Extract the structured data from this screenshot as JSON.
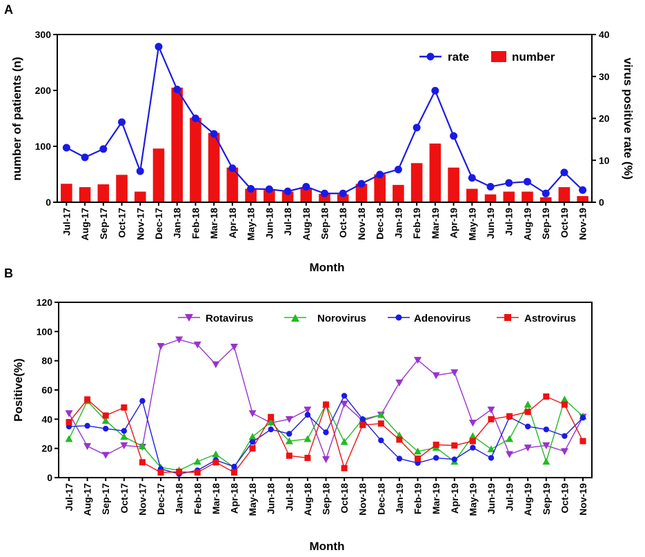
{
  "months": [
    "Jul-17",
    "Aug-17",
    "Sep-17",
    "Oct-17",
    "Nov-17",
    "Dec-17",
    "Jan-18",
    "Feb-18",
    "Mar-18",
    "Apr-18",
    "May-18",
    "Jun-18",
    "Jul-18",
    "Aug-18",
    "Sep-18",
    "Oct-18",
    "Nov-18",
    "Dec-18",
    "Jan-19",
    "Feb-19",
    "Mar-19",
    "Apr-19",
    "May-19",
    "Jun-19",
    "Jul-19",
    "Aug-19",
    "Sep-19",
    "Oct-19",
    "Nov-19"
  ],
  "chart_data": [
    {
      "panel": "A",
      "type": "bar+line",
      "xlabel": "Month",
      "ylabel_left": "number of patients (n)",
      "ylabel_right": "virus positive rate (%)",
      "ylim_left": [
        0,
        300
      ],
      "yticks_left": [
        0,
        100,
        200,
        300
      ],
      "ylim_right": [
        0,
        40
      ],
      "yticks_right": [
        0,
        10,
        20,
        30,
        40
      ],
      "legend_position": "top-right",
      "series": [
        {
          "name": "rate",
          "axis": "right",
          "kind": "line",
          "color": "#1a1ae6",
          "values": [
            13,
            10.7,
            12.7,
            19.1,
            7.4,
            37.1,
            26.9,
            20,
            16.3,
            8.1,
            3.2,
            3.1,
            2.6,
            3.7,
            2.1,
            2.1,
            4.4,
            6.6,
            7.8,
            17.8,
            26.6,
            15.8,
            5.8,
            3.7,
            4.6,
            4.9,
            2.1,
            7.1,
            2.9
          ]
        },
        {
          "name": "number",
          "axis": "left",
          "kind": "bar",
          "color": "#ee1111",
          "values": [
            33,
            27,
            32,
            49,
            19,
            96,
            205,
            151,
            124,
            62,
            24,
            22,
            19,
            26,
            15,
            14,
            33,
            50,
            31,
            70,
            105,
            62,
            24,
            14,
            19,
            19,
            9,
            27,
            11
          ]
        }
      ]
    },
    {
      "panel": "B",
      "type": "line",
      "xlabel": "Month",
      "ylabel": "Positive(%)",
      "ylim": [
        0,
        120
      ],
      "yticks": [
        0,
        20,
        40,
        60,
        80,
        100,
        120
      ],
      "legend_position": "top",
      "series": [
        {
          "name": "Rotavirus",
          "color": "#9933cc",
          "marker": "triangle-down",
          "values": [
            44,
            21.5,
            15.5,
            22,
            21,
            90,
            94.5,
            91,
            77.5,
            89.5,
            44,
            37.5,
            40,
            46.5,
            12.5,
            50.5,
            39,
            43,
            65,
            80.5,
            70,
            72,
            37.5,
            46.5,
            16,
            20.5,
            22,
            18,
            41.5
          ]
        },
        {
          "name": "Norovirus",
          "color": "#22bb22",
          "marker": "triangle-up",
          "values": [
            26.5,
            52.5,
            39,
            28,
            21.5,
            7,
            5,
            11,
            16,
            7,
            28,
            38,
            25,
            26.5,
            50,
            24.5,
            40,
            43,
            29,
            18,
            20.5,
            11,
            28.5,
            19.5,
            26.5,
            50,
            11,
            53.5,
            42
          ]
        },
        {
          "name": "Adenovirus",
          "color": "#1a1ae6",
          "marker": "circle",
          "values": [
            35,
            35.5,
            33.5,
            32,
            52.5,
            6,
            2.5,
            5,
            12,
            7.5,
            24.5,
            33,
            30,
            43,
            31,
            56,
            40,
            25.5,
            13,
            10,
            13.5,
            12.5,
            20.5,
            13.5,
            41.5,
            35,
            33,
            28.5,
            41
          ]
        },
        {
          "name": "Astrovirus",
          "color": "#ee1111",
          "marker": "square",
          "values": [
            38,
            53.5,
            42.5,
            48,
            10.5,
            3.5,
            4,
            3.5,
            10.5,
            3.5,
            20,
            41.5,
            15,
            13.5,
            50,
            6.5,
            36,
            37,
            26,
            13,
            22.5,
            22,
            25,
            40,
            42,
            45,
            55.5,
            50,
            25
          ]
        }
      ]
    }
  ],
  "labels": {
    "panel_a": "A",
    "panel_b": "B",
    "a_xlabel": "Month",
    "a_ylabel_left": "number of patients (n)",
    "a_ylabel_right": "virus positive rate (%)",
    "a_legend_rate": "rate",
    "a_legend_number": "number",
    "b_xlabel": "Month",
    "b_ylabel": "Positive(%)",
    "b_legend_rota": "Rotavirus",
    "b_legend_noro": "Norovirus",
    "b_legend_adeno": "Adenovirus",
    "b_legend_astro": "Astrovirus"
  }
}
